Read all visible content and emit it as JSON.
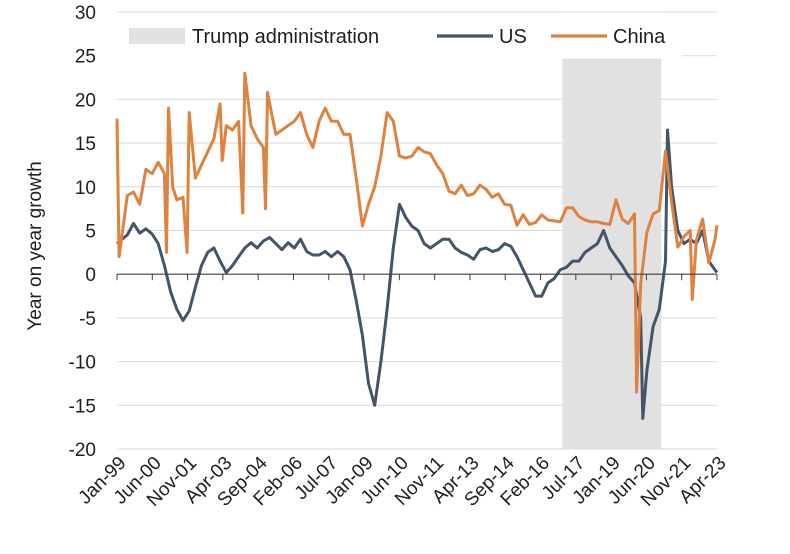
{
  "chart_data": {
    "type": "line",
    "title": "",
    "xlabel": "",
    "ylabel": "Year on year growth",
    "ylim": [
      -20,
      30
    ],
    "yticks": [
      30,
      25,
      20,
      15,
      10,
      5,
      0,
      -5,
      -10,
      -15,
      -20
    ],
    "xlim": [
      "1999-01",
      "2023-04"
    ],
    "xtick_labels": [
      "Jan-99",
      "Jun-00",
      "Nov-01",
      "Apr-03",
      "Sep-04",
      "Feb-06",
      "Jul-07",
      "Jan-09",
      "Jun-10",
      "Nov-11",
      "Apr-13",
      "Sep-14",
      "Feb-16",
      "Jul-17",
      "Jan-19",
      "Jun-20",
      "Nov-21",
      "Apr-23"
    ],
    "grid": "horizontal",
    "legend": "top",
    "shaded_period": {
      "name": "Trump administration",
      "start": "2017-01",
      "end": "2021-01",
      "color": "#e1e1e1"
    },
    "series": [
      {
        "name": "US",
        "color": "#44546a",
        "points": [
          [
            "1999-01",
            3.5
          ],
          [
            "1999-06",
            4.5
          ],
          [
            "1999-09",
            5.8
          ],
          [
            "1999-12",
            4.7
          ],
          [
            "2000-03",
            5.2
          ],
          [
            "2000-06",
            4.6
          ],
          [
            "2000-09",
            3.5
          ],
          [
            "2000-12",
            1.0
          ],
          [
            "2001-03",
            -2.0
          ],
          [
            "2001-06",
            -4.0
          ],
          [
            "2001-09",
            -5.3
          ],
          [
            "2001-12",
            -4.2
          ],
          [
            "2002-03",
            -1.5
          ],
          [
            "2002-06",
            1.0
          ],
          [
            "2002-09",
            2.5
          ],
          [
            "2002-12",
            3.0
          ],
          [
            "2003-03",
            1.5
          ],
          [
            "2003-06",
            0.2
          ],
          [
            "2003-09",
            1.0
          ],
          [
            "2003-12",
            2.0
          ],
          [
            "2004-03",
            3.0
          ],
          [
            "2004-06",
            3.6
          ],
          [
            "2004-09",
            3.0
          ],
          [
            "2004-12",
            3.8
          ],
          [
            "2005-03",
            4.2
          ],
          [
            "2005-06",
            3.5
          ],
          [
            "2005-09",
            2.8
          ],
          [
            "2005-12",
            3.6
          ],
          [
            "2006-03",
            3.0
          ],
          [
            "2006-06",
            4.0
          ],
          [
            "2006-09",
            2.6
          ],
          [
            "2006-12",
            2.2
          ],
          [
            "2007-03",
            2.2
          ],
          [
            "2007-06",
            2.6
          ],
          [
            "2007-09",
            2.0
          ],
          [
            "2007-12",
            2.6
          ],
          [
            "2008-03",
            2.0
          ],
          [
            "2008-06",
            0.5
          ],
          [
            "2008-09",
            -3.0
          ],
          [
            "2008-12",
            -7.0
          ],
          [
            "2009-03",
            -12.5
          ],
          [
            "2009-06",
            -15.0
          ],
          [
            "2009-09",
            -10.0
          ],
          [
            "2009-12",
            -4.0
          ],
          [
            "2010-03",
            3.0
          ],
          [
            "2010-06",
            8.0
          ],
          [
            "2010-09",
            6.5
          ],
          [
            "2010-12",
            5.5
          ],
          [
            "2011-03",
            5.0
          ],
          [
            "2011-06",
            3.5
          ],
          [
            "2011-09",
            3.0
          ],
          [
            "2011-12",
            3.5
          ],
          [
            "2012-03",
            4.0
          ],
          [
            "2012-06",
            4.0
          ],
          [
            "2012-09",
            3.0
          ],
          [
            "2012-12",
            2.5
          ],
          [
            "2013-03",
            2.2
          ],
          [
            "2013-06",
            1.7
          ],
          [
            "2013-09",
            2.8
          ],
          [
            "2013-12",
            3.0
          ],
          [
            "2014-03",
            2.6
          ],
          [
            "2014-06",
            2.8
          ],
          [
            "2014-09",
            3.5
          ],
          [
            "2014-12",
            3.2
          ],
          [
            "2015-03",
            2.0
          ],
          [
            "2015-06",
            0.5
          ],
          [
            "2015-09",
            -1.0
          ],
          [
            "2015-12",
            -2.5
          ],
          [
            "2016-03",
            -2.5
          ],
          [
            "2016-06",
            -1.0
          ],
          [
            "2016-09",
            -0.5
          ],
          [
            "2016-12",
            0.5
          ],
          [
            "2017-03",
            0.8
          ],
          [
            "2017-06",
            1.5
          ],
          [
            "2017-09",
            1.5
          ],
          [
            "2017-12",
            2.5
          ],
          [
            "2018-03",
            3.0
          ],
          [
            "2018-06",
            3.5
          ],
          [
            "2018-09",
            5.0
          ],
          [
            "2018-12",
            3.0
          ],
          [
            "2019-03",
            2.0
          ],
          [
            "2019-06",
            1.0
          ],
          [
            "2019-09",
            -0.2
          ],
          [
            "2019-12",
            -1.0
          ],
          [
            "2020-03",
            -5.0
          ],
          [
            "2020-04",
            -16.5
          ],
          [
            "2020-06",
            -11.0
          ],
          [
            "2020-09",
            -6.0
          ],
          [
            "2020-12",
            -4.0
          ],
          [
            "2021-03",
            1.5
          ],
          [
            "2021-04",
            16.5
          ],
          [
            "2021-06",
            10.0
          ],
          [
            "2021-09",
            5.0
          ],
          [
            "2021-12",
            3.5
          ],
          [
            "2022-03",
            4.0
          ],
          [
            "2022-06",
            3.5
          ],
          [
            "2022-09",
            5.0
          ],
          [
            "2022-12",
            1.5
          ],
          [
            "2023-03",
            0.5
          ],
          [
            "2023-04",
            0.2
          ]
        ]
      },
      {
        "name": "China",
        "color": "#e0823f",
        "points": [
          [
            "1999-01",
            17.8
          ],
          [
            "1999-02",
            2.0
          ],
          [
            "1999-06",
            9.0
          ],
          [
            "1999-09",
            9.4
          ],
          [
            "1999-12",
            8.0
          ],
          [
            "2000-03",
            12.0
          ],
          [
            "2000-06",
            11.5
          ],
          [
            "2000-09",
            12.8
          ],
          [
            "2000-12",
            11.5
          ],
          [
            "2001-01",
            2.5
          ],
          [
            "2001-02",
            19.0
          ],
          [
            "2001-04",
            10.0
          ],
          [
            "2001-06",
            8.5
          ],
          [
            "2001-09",
            8.8
          ],
          [
            "2001-11",
            2.5
          ],
          [
            "2001-12",
            18.5
          ],
          [
            "2002-03",
            11.0
          ],
          [
            "2002-06",
            12.5
          ],
          [
            "2002-09",
            14.0
          ],
          [
            "2002-12",
            15.5
          ],
          [
            "2003-03",
            19.5
          ],
          [
            "2003-04",
            13.0
          ],
          [
            "2003-06",
            17.0
          ],
          [
            "2003-09",
            16.5
          ],
          [
            "2003-12",
            17.5
          ],
          [
            "2004-02",
            7.0
          ],
          [
            "2004-03",
            23.0
          ],
          [
            "2004-06",
            17.0
          ],
          [
            "2004-09",
            15.5
          ],
          [
            "2004-12",
            14.5
          ],
          [
            "2005-01",
            7.5
          ],
          [
            "2005-02",
            20.8
          ],
          [
            "2005-06",
            16.0
          ],
          [
            "2005-09",
            16.5
          ],
          [
            "2005-12",
            17.0
          ],
          [
            "2006-03",
            17.5
          ],
          [
            "2006-06",
            18.5
          ],
          [
            "2006-09",
            16.0
          ],
          [
            "2006-12",
            14.5
          ],
          [
            "2007-03",
            17.5
          ],
          [
            "2007-06",
            19.0
          ],
          [
            "2007-09",
            17.5
          ],
          [
            "2007-12",
            17.5
          ],
          [
            "2008-03",
            16.0
          ],
          [
            "2008-06",
            16.0
          ],
          [
            "2008-09",
            11.0
          ],
          [
            "2008-12",
            5.5
          ],
          [
            "2009-03",
            8.0
          ],
          [
            "2009-06",
            10.0
          ],
          [
            "2009-09",
            13.5
          ],
          [
            "2009-12",
            18.5
          ],
          [
            "2010-03",
            17.5
          ],
          [
            "2010-06",
            13.5
          ],
          [
            "2010-09",
            13.3
          ],
          [
            "2010-12",
            13.5
          ],
          [
            "2011-03",
            14.5
          ],
          [
            "2011-06",
            14.0
          ],
          [
            "2011-09",
            13.8
          ],
          [
            "2011-12",
            12.5
          ],
          [
            "2012-03",
            11.5
          ],
          [
            "2012-06",
            9.5
          ],
          [
            "2012-09",
            9.2
          ],
          [
            "2012-12",
            10.2
          ],
          [
            "2013-03",
            9.0
          ],
          [
            "2013-06",
            9.2
          ],
          [
            "2013-09",
            10.2
          ],
          [
            "2013-12",
            9.7
          ],
          [
            "2014-03",
            8.8
          ],
          [
            "2014-06",
            9.2
          ],
          [
            "2014-09",
            8.0
          ],
          [
            "2014-12",
            7.9
          ],
          [
            "2015-03",
            5.6
          ],
          [
            "2015-06",
            6.8
          ],
          [
            "2015-09",
            5.7
          ],
          [
            "2015-12",
            5.9
          ],
          [
            "2016-03",
            6.8
          ],
          [
            "2016-06",
            6.2
          ],
          [
            "2016-09",
            6.1
          ],
          [
            "2016-12",
            6.0
          ],
          [
            "2017-03",
            7.6
          ],
          [
            "2017-06",
            7.6
          ],
          [
            "2017-09",
            6.6
          ],
          [
            "2017-12",
            6.2
          ],
          [
            "2018-03",
            6.0
          ],
          [
            "2018-06",
            6.0
          ],
          [
            "2018-09",
            5.8
          ],
          [
            "2018-12",
            5.7
          ],
          [
            "2019-03",
            8.5
          ],
          [
            "2019-06",
            6.3
          ],
          [
            "2019-09",
            5.8
          ],
          [
            "2019-12",
            6.9
          ],
          [
            "2020-01",
            -13.5
          ],
          [
            "2020-03",
            -1.1
          ],
          [
            "2020-06",
            4.8
          ],
          [
            "2020-09",
            6.9
          ],
          [
            "2020-12",
            7.3
          ],
          [
            "2021-03",
            14.1
          ],
          [
            "2021-06",
            8.3
          ],
          [
            "2021-09",
            3.1
          ],
          [
            "2021-12",
            4.3
          ],
          [
            "2022-03",
            5.0
          ],
          [
            "2022-04",
            -2.9
          ],
          [
            "2022-06",
            3.9
          ],
          [
            "2022-09",
            6.3
          ],
          [
            "2022-12",
            1.3
          ],
          [
            "2023-03",
            3.9
          ],
          [
            "2023-04",
            5.6
          ]
        ]
      }
    ]
  },
  "legend": {
    "items": [
      {
        "label": "Trump administration",
        "kind": "box",
        "color": "#e1e1e1"
      },
      {
        "label": "US",
        "kind": "line",
        "color": "#44546a"
      },
      {
        "label": "China",
        "kind": "line",
        "color": "#e0823f"
      }
    ]
  }
}
